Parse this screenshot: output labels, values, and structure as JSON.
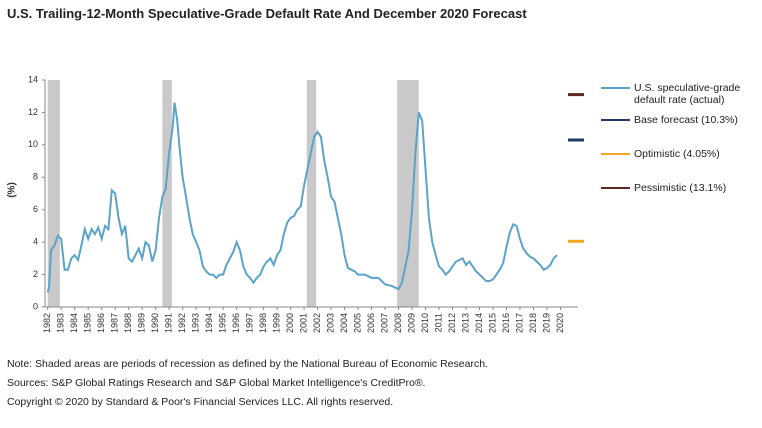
{
  "chart_data": {
    "type": "line",
    "title": "U.S. Trailing-12-Month Speculative-Grade Default Rate And December 2020 Forecast",
    "y_label": "(%)",
    "xlim": [
      1981.8,
      2021.3
    ],
    "xticks": [
      1982,
      1983,
      1984,
      1985,
      1986,
      1987,
      1988,
      1989,
      1990,
      1991,
      1992,
      1993,
      1994,
      1995,
      1996,
      1997,
      1998,
      1999,
      2000,
      2001,
      2002,
      2003,
      2004,
      2005,
      2006,
      2007,
      2008,
      2009,
      2010,
      2011,
      2012,
      2013,
      2014,
      2015,
      2016,
      2017,
      2018,
      2019,
      2020
    ],
    "ylim": [
      0,
      14
    ],
    "yticks": [
      0,
      2,
      4,
      6,
      8,
      10,
      12,
      14
    ],
    "recessions": [
      [
        1982.0,
        1982.9
      ],
      [
        1990.5,
        1991.2
      ],
      [
        2001.2,
        2001.9
      ],
      [
        2007.9,
        2009.5
      ]
    ],
    "series": [
      {
        "name": "U.S. speculative-grade default rate (actual)",
        "color": "#5ba3c9",
        "x": [
          1982.0,
          1982.1,
          1982.25,
          1982.5,
          1982.75,
          1983.0,
          1983.25,
          1983.5,
          1983.75,
          1984.0,
          1984.25,
          1984.5,
          1984.75,
          1985.0,
          1985.25,
          1985.5,
          1985.75,
          1986.0,
          1986.25,
          1986.5,
          1986.75,
          1987.0,
          1987.25,
          1987.5,
          1987.75,
          1988.0,
          1988.25,
          1988.5,
          1988.75,
          1989.0,
          1989.25,
          1989.5,
          1989.75,
          1990.0,
          1990.25,
          1990.5,
          1990.75,
          1991.0,
          1991.25,
          1991.4,
          1991.6,
          1991.75,
          1992.0,
          1992.25,
          1992.5,
          1992.75,
          1993.0,
          1993.25,
          1993.5,
          1993.75,
          1994.0,
          1994.25,
          1994.5,
          1994.75,
          1995.0,
          1995.25,
          1995.5,
          1995.75,
          1996.0,
          1996.25,
          1996.5,
          1996.75,
          1997.0,
          1997.25,
          1997.5,
          1997.75,
          1998.0,
          1998.25,
          1998.5,
          1998.75,
          1999.0,
          1999.25,
          1999.5,
          1999.75,
          2000.0,
          2000.25,
          2000.5,
          2000.75,
          2001.0,
          2001.25,
          2001.5,
          2001.75,
          2002.0,
          2002.25,
          2002.5,
          2002.75,
          2003.0,
          2003.25,
          2003.5,
          2003.75,
          2004.0,
          2004.25,
          2004.5,
          2004.75,
          2005.0,
          2005.5,
          2006.0,
          2006.5,
          2007.0,
          2007.5,
          2008.0,
          2008.25,
          2008.5,
          2008.75,
          2009.0,
          2009.25,
          2009.5,
          2009.75,
          2010.0,
          2010.25,
          2010.5,
          2010.75,
          2011.0,
          2011.25,
          2011.5,
          2011.75,
          2012.0,
          2012.25,
          2012.5,
          2012.75,
          2013.0,
          2013.25,
          2013.5,
          2013.75,
          2014.0,
          2014.25,
          2014.5,
          2014.75,
          2015.0,
          2015.25,
          2015.5,
          2015.75,
          2016.0,
          2016.25,
          2016.5,
          2016.75,
          2017.0,
          2017.25,
          2017.5,
          2017.75,
          2018.0,
          2018.25,
          2018.5,
          2018.75,
          2019.0,
          2019.25,
          2019.5,
          2019.75
        ],
        "values": [
          0.9,
          1.2,
          3.5,
          3.8,
          4.4,
          4.2,
          2.3,
          2.3,
          3.0,
          3.2,
          2.9,
          3.8,
          4.8,
          4.2,
          4.8,
          4.5,
          4.9,
          4.2,
          5.0,
          4.8,
          7.2,
          7.0,
          5.5,
          4.5,
          5.0,
          3.0,
          2.8,
          3.2,
          3.6,
          3.0,
          4.0,
          3.8,
          2.8,
          3.5,
          5.5,
          6.8,
          7.3,
          9.5,
          11.0,
          12.6,
          11.5,
          10.0,
          8.0,
          6.8,
          5.5,
          4.5,
          4.0,
          3.5,
          2.5,
          2.2,
          2.0,
          2.0,
          1.8,
          2.0,
          2.0,
          2.6,
          3.0,
          3.4,
          4.0,
          3.5,
          2.5,
          2.0,
          1.8,
          1.5,
          1.8,
          2.0,
          2.5,
          2.8,
          3.0,
          2.6,
          3.2,
          3.5,
          4.5,
          5.2,
          5.5,
          5.6,
          6.0,
          6.2,
          7.5,
          8.5,
          9.5,
          10.5,
          10.8,
          10.5,
          9.0,
          8.0,
          6.8,
          6.5,
          5.5,
          4.5,
          3.2,
          2.4,
          2.3,
          2.2,
          2.0,
          2.0,
          1.8,
          1.8,
          1.4,
          1.3,
          1.1,
          1.5,
          2.5,
          3.5,
          6.0,
          9.5,
          12.0,
          11.5,
          8.5,
          5.5,
          4.0,
          3.2,
          2.5,
          2.3,
          2.0,
          2.2,
          2.5,
          2.8,
          2.9,
          3.0,
          2.6,
          2.8,
          2.5,
          2.2,
          2.0,
          1.8,
          1.6,
          1.6,
          1.7,
          2.0,
          2.3,
          2.7,
          3.7,
          4.6,
          5.1,
          5.0,
          4.2,
          3.6,
          3.3,
          3.1,
          3.0,
          2.8,
          2.6,
          2.3,
          2.4,
          2.6,
          3.0,
          3.2
        ]
      }
    ],
    "forecasts": [
      {
        "name": "Base forecast (10.3%)",
        "color": "#1f3864",
        "value": 10.3
      },
      {
        "name": "Optimistic (4.05%)",
        "color": "#f5a623",
        "value": 4.05
      },
      {
        "name": "Pessimistic (13.1%)",
        "color": "#5a2a27",
        "value": 13.1
      }
    ],
    "notes": [
      "Note: Shaded areas are periods of recession as defined by the National Bureau of Economic Research.",
      "Sources: S&P Global Ratings Research and S&P Global Market Intelligence's CreditPro®.",
      "Copyright © 2020 by Standard & Poor's Financial Services LLC. All rights reserved."
    ]
  }
}
